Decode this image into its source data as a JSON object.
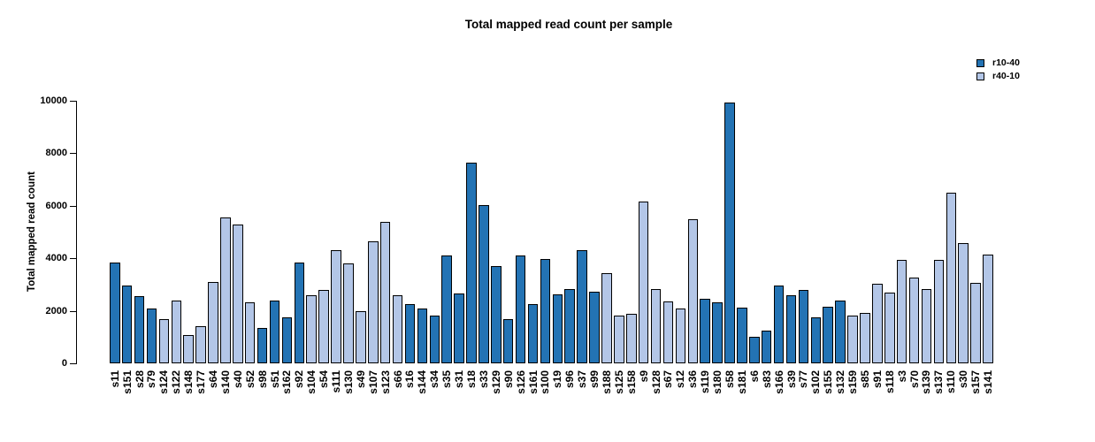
{
  "chart_data": {
    "type": "bar",
    "title": "Total mapped read count per sample",
    "ylabel": "Total mapped read count",
    "xlabel": "",
    "ylim": [
      0,
      10000
    ],
    "yticks": [
      0,
      2000,
      4000,
      6000,
      8000,
      10000
    ],
    "grid": false,
    "legend_position": "top-right",
    "legend": [
      {
        "name": "r10-40",
        "color": "#2373b4"
      },
      {
        "name": "r40-10",
        "color": "#b3c6e7"
      }
    ],
    "bars": [
      {
        "label": "s11",
        "value": 3850,
        "group": "r10-40"
      },
      {
        "label": "s151",
        "value": 2950,
        "group": "r10-40"
      },
      {
        "label": "s28",
        "value": 2550,
        "group": "r10-40"
      },
      {
        "label": "s79",
        "value": 2100,
        "group": "r10-40"
      },
      {
        "label": "s124",
        "value": 1700,
        "group": "r40-10"
      },
      {
        "label": "s122",
        "value": 2400,
        "group": "r40-10"
      },
      {
        "label": "s148",
        "value": 1080,
        "group": "r40-10"
      },
      {
        "label": "s177",
        "value": 1400,
        "group": "r40-10"
      },
      {
        "label": "s64",
        "value": 3100,
        "group": "r40-10"
      },
      {
        "label": "s140",
        "value": 5550,
        "group": "r40-10"
      },
      {
        "label": "s40",
        "value": 5300,
        "group": "r40-10"
      },
      {
        "label": "s52",
        "value": 2330,
        "group": "r40-10"
      },
      {
        "label": "s98",
        "value": 1350,
        "group": "r10-40"
      },
      {
        "label": "s51",
        "value": 2400,
        "group": "r10-40"
      },
      {
        "label": "s162",
        "value": 1750,
        "group": "r10-40"
      },
      {
        "label": "s92",
        "value": 3850,
        "group": "r10-40"
      },
      {
        "label": "s104",
        "value": 2600,
        "group": "r40-10"
      },
      {
        "label": "s54",
        "value": 2780,
        "group": "r40-10"
      },
      {
        "label": "s111",
        "value": 4300,
        "group": "r40-10"
      },
      {
        "label": "s130",
        "value": 3800,
        "group": "r40-10"
      },
      {
        "label": "s49",
        "value": 2000,
        "group": "r40-10"
      },
      {
        "label": "s107",
        "value": 4650,
        "group": "r40-10"
      },
      {
        "label": "s123",
        "value": 5400,
        "group": "r40-10"
      },
      {
        "label": "s66",
        "value": 2600,
        "group": "r40-10"
      },
      {
        "label": "s16",
        "value": 2250,
        "group": "r10-40"
      },
      {
        "label": "s144",
        "value": 2100,
        "group": "r10-40"
      },
      {
        "label": "s34",
        "value": 1830,
        "group": "r10-40"
      },
      {
        "label": "s35",
        "value": 4100,
        "group": "r10-40"
      },
      {
        "label": "s31",
        "value": 2650,
        "group": "r10-40"
      },
      {
        "label": "s18",
        "value": 7650,
        "group": "r10-40"
      },
      {
        "label": "s33",
        "value": 6030,
        "group": "r10-40"
      },
      {
        "label": "s129",
        "value": 3700,
        "group": "r10-40"
      },
      {
        "label": "s90",
        "value": 1680,
        "group": "r10-40"
      },
      {
        "label": "s126",
        "value": 4120,
        "group": "r10-40"
      },
      {
        "label": "s161",
        "value": 2250,
        "group": "r10-40"
      },
      {
        "label": "s100",
        "value": 3980,
        "group": "r10-40"
      },
      {
        "label": "s19",
        "value": 2620,
        "group": "r10-40"
      },
      {
        "label": "s96",
        "value": 2840,
        "group": "r10-40"
      },
      {
        "label": "s37",
        "value": 4300,
        "group": "r10-40"
      },
      {
        "label": "s99",
        "value": 2730,
        "group": "r10-40"
      },
      {
        "label": "s188",
        "value": 3450,
        "group": "r40-10"
      },
      {
        "label": "s125",
        "value": 1830,
        "group": "r40-10"
      },
      {
        "label": "s158",
        "value": 1900,
        "group": "r40-10"
      },
      {
        "label": "s9",
        "value": 6150,
        "group": "r40-10"
      },
      {
        "label": "s128",
        "value": 2830,
        "group": "r40-10"
      },
      {
        "label": "s67",
        "value": 2360,
        "group": "r40-10"
      },
      {
        "label": "s12",
        "value": 2100,
        "group": "r40-10"
      },
      {
        "label": "s36",
        "value": 5480,
        "group": "r40-10"
      },
      {
        "label": "s119",
        "value": 2450,
        "group": "r10-40"
      },
      {
        "label": "s180",
        "value": 2330,
        "group": "r10-40"
      },
      {
        "label": "s58",
        "value": 9920,
        "group": "r10-40"
      },
      {
        "label": "s181",
        "value": 2130,
        "group": "r10-40"
      },
      {
        "label": "s6",
        "value": 1000,
        "group": "r10-40"
      },
      {
        "label": "s83",
        "value": 1250,
        "group": "r10-40"
      },
      {
        "label": "s166",
        "value": 2950,
        "group": "r10-40"
      },
      {
        "label": "s39",
        "value": 2600,
        "group": "r10-40"
      },
      {
        "label": "s77",
        "value": 2780,
        "group": "r10-40"
      },
      {
        "label": "s102",
        "value": 1750,
        "group": "r10-40"
      },
      {
        "label": "s155",
        "value": 2150,
        "group": "r10-40"
      },
      {
        "label": "s132",
        "value": 2400,
        "group": "r10-40"
      },
      {
        "label": "s159",
        "value": 1830,
        "group": "r40-10"
      },
      {
        "label": "s85",
        "value": 1930,
        "group": "r40-10"
      },
      {
        "label": "s91",
        "value": 3030,
        "group": "r40-10"
      },
      {
        "label": "s118",
        "value": 2700,
        "group": "r40-10"
      },
      {
        "label": "s3",
        "value": 3950,
        "group": "r40-10"
      },
      {
        "label": "s70",
        "value": 3250,
        "group": "r40-10"
      },
      {
        "label": "s139",
        "value": 2820,
        "group": "r40-10"
      },
      {
        "label": "s137",
        "value": 3930,
        "group": "r40-10"
      },
      {
        "label": "s110",
        "value": 6500,
        "group": "r40-10"
      },
      {
        "label": "s30",
        "value": 4580,
        "group": "r40-10"
      },
      {
        "label": "s157",
        "value": 3050,
        "group": "r40-10"
      },
      {
        "label": "s141",
        "value": 4150,
        "group": "r40-10"
      }
    ]
  }
}
